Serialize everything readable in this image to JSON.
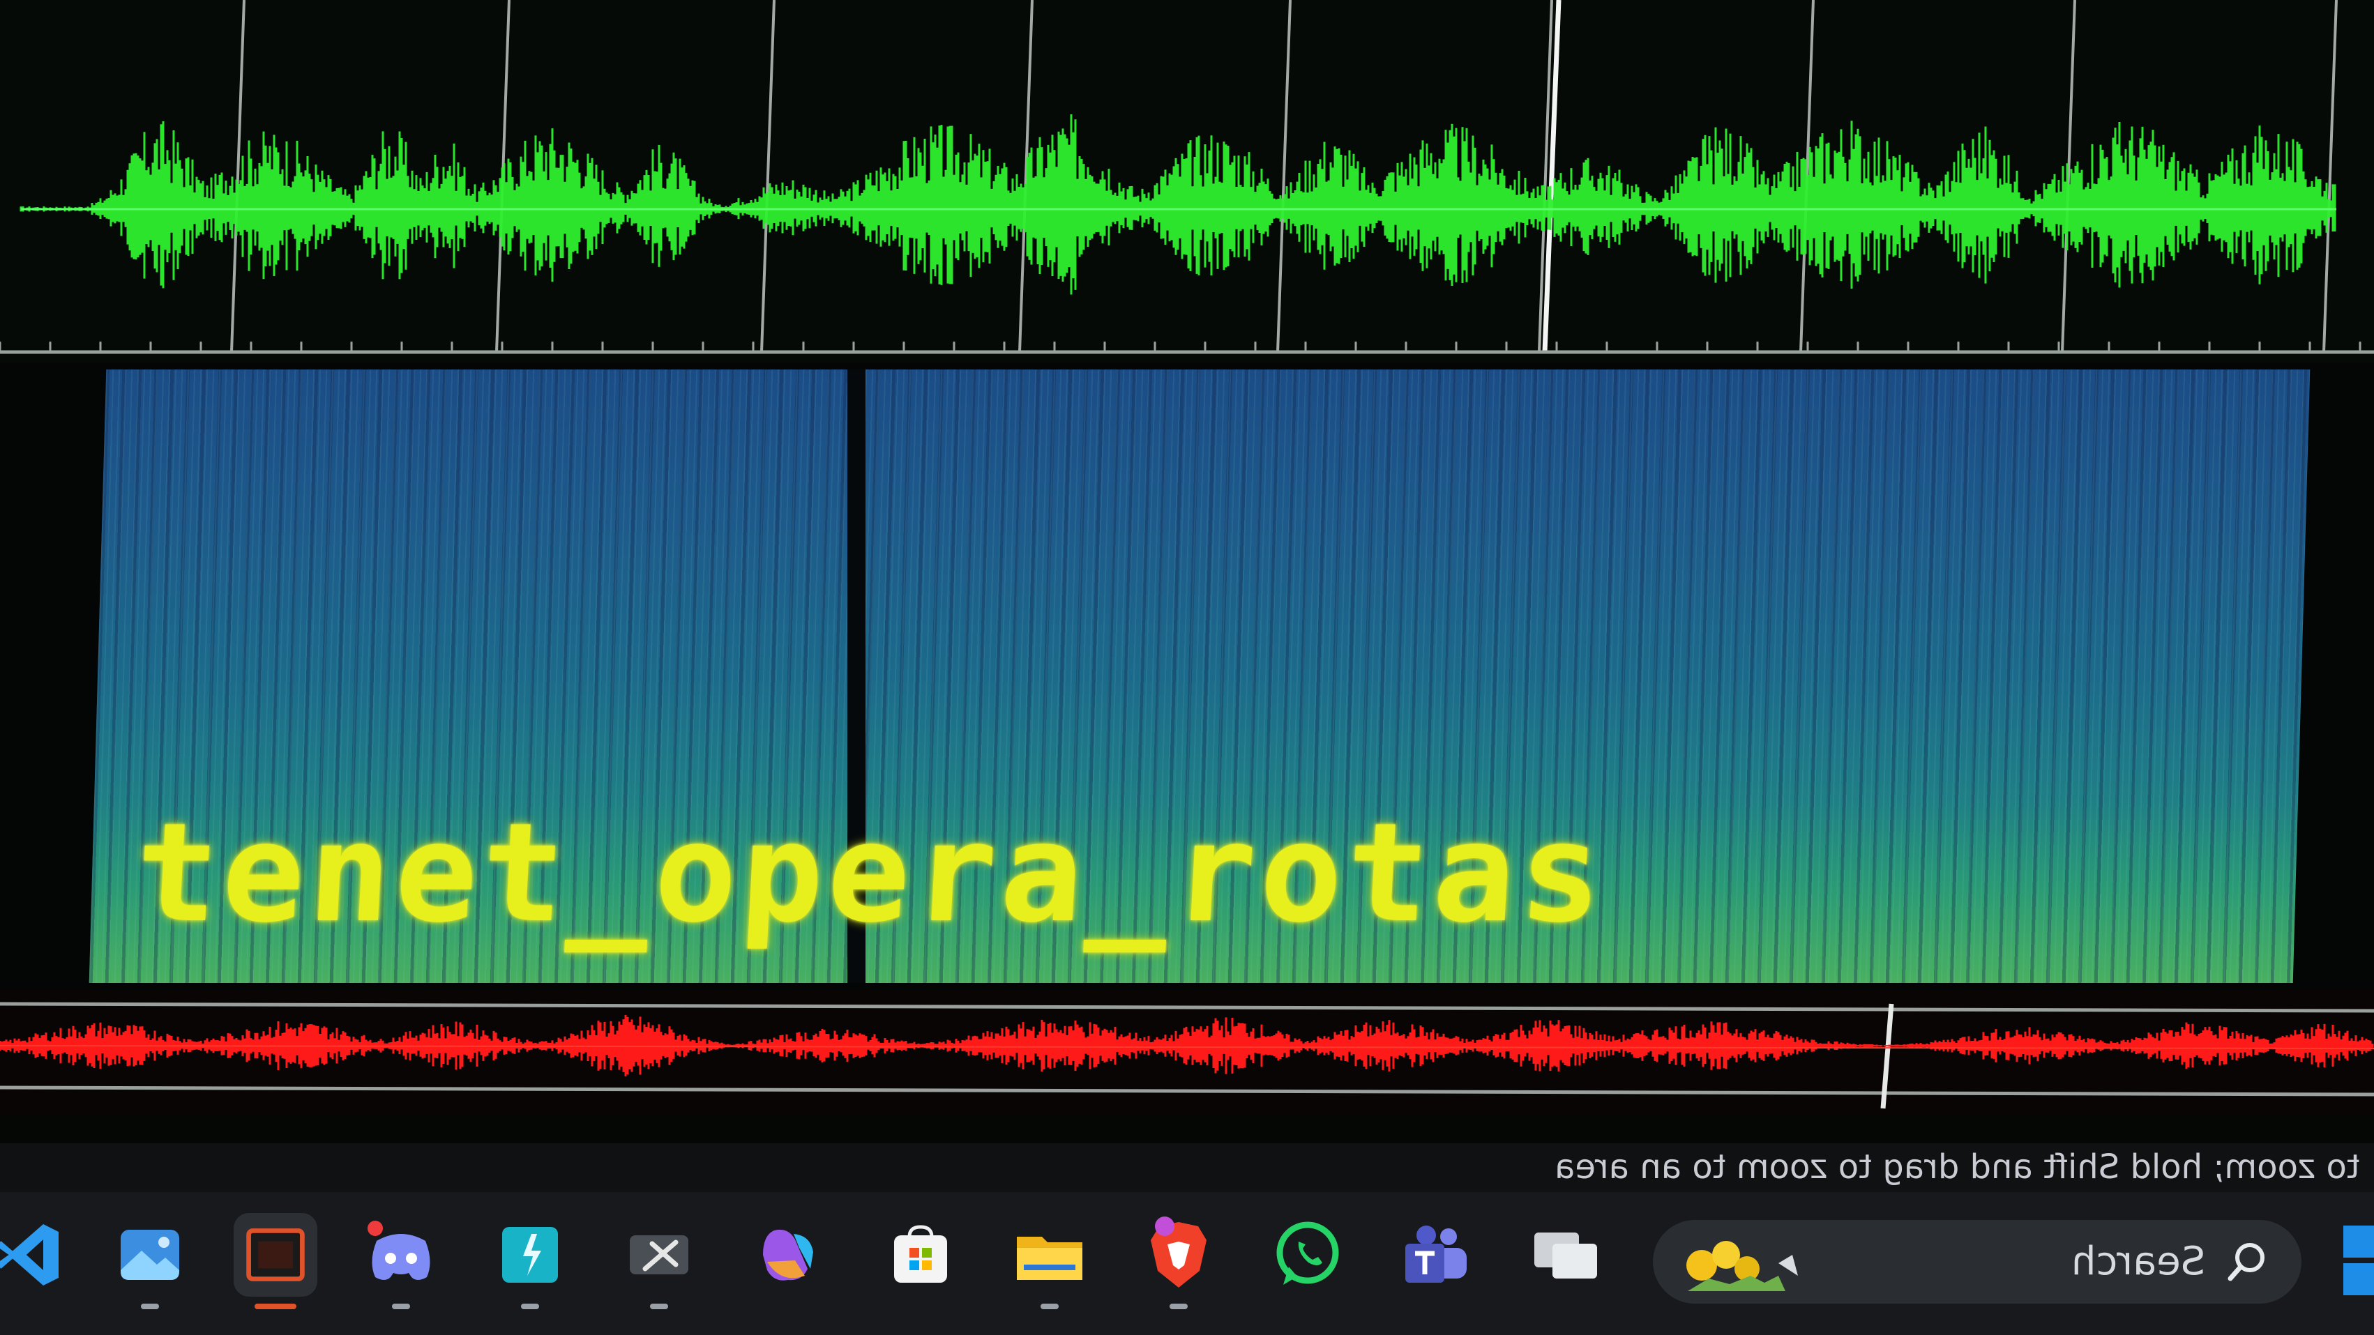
{
  "spectrogram": {
    "hidden_text": "tenet_opera_rotas"
  },
  "status_bar": {
    "hint": "to zoom; hold Shift and drag to zoom to an area"
  },
  "taskbar": {
    "search_placeholder": "Search",
    "pinned_icons": [
      "vscode-icon",
      "photos-icon",
      "terminal-app-icon",
      "discord-icon",
      "copilot-app-icon",
      "snipping-tool-icon",
      "microsoft-copilot-icon",
      "microsoft-store-icon",
      "file-explorer-icon",
      "brave-browser-icon",
      "whatsapp-icon",
      "teams-icon",
      "task-view-icon"
    ],
    "active_app": "terminal-app-icon"
  },
  "colors": {
    "top_waveform": "#2ef02e",
    "bottom_waveform": "#ff1a1a",
    "spectrogram_text": "#e7ef1c",
    "spectrogram_base": "#1c5a8a"
  }
}
